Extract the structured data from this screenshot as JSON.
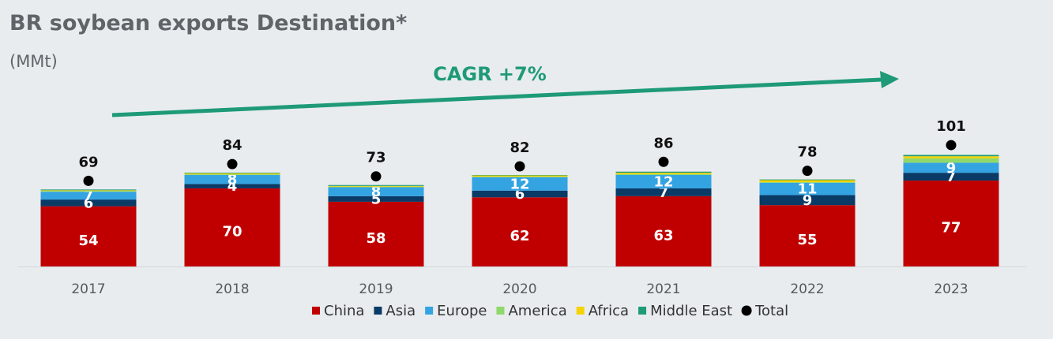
{
  "title": "BR soybean exports Destination*",
  "unit": "(MMt)",
  "annotation": {
    "text": "CAGR +7%",
    "color": "#1e9a78"
  },
  "chart_data": {
    "type": "bar",
    "stacked": true,
    "title": "BR soybean exports Destination*",
    "ylabel": "(MMt)",
    "categories": [
      "2017",
      "2018",
      "2019",
      "2020",
      "2021",
      "2022",
      "2023"
    ],
    "ylim": [
      0,
      101
    ],
    "grid": false,
    "legend_position": "bottom",
    "series": [
      {
        "name": "China",
        "color": "#c00000",
        "values": [
          54,
          70,
          58,
          62,
          63,
          55,
          77
        ],
        "labels": [
          "54",
          "70",
          "58",
          "62",
          "63",
          "55",
          "77"
        ]
      },
      {
        "name": "Asia",
        "color": "#0a3a66",
        "values": [
          6,
          4,
          5,
          6,
          7,
          9,
          7
        ],
        "labels": [
          "6",
          "4",
          "5",
          "6",
          "7",
          "9",
          "7"
        ]
      },
      {
        "name": "Europe",
        "color": "#34a3e2",
        "values": [
          7,
          8,
          8,
          12,
          12,
          11,
          9
        ],
        "labels": [
          "7",
          "8",
          "8",
          "12",
          "12",
          "11",
          "9"
        ]
      },
      {
        "name": "America",
        "color": "#8fd86a",
        "values": [
          0.7,
          0.6,
          0.6,
          0.6,
          0.8,
          0.6,
          4
        ],
        "labels": [
          "",
          "",
          "",
          "",
          "",
          "",
          ""
        ]
      },
      {
        "name": "Africa",
        "color": "#f5d300",
        "values": [
          0.6,
          0.8,
          0.6,
          1.0,
          1.2,
          1.8,
          1.8
        ],
        "labels": [
          "",
          "",
          "",
          "",
          "",
          "",
          ""
        ]
      },
      {
        "name": "Middle East",
        "color": "#1f9b79",
        "values": [
          0.7,
          0.6,
          0.8,
          0.4,
          1.0,
          0.6,
          1.2
        ],
        "labels": [
          "",
          "",
          "",
          "",
          "",
          "",
          ""
        ]
      }
    ],
    "totals": {
      "name": "Total",
      "color": "#000000",
      "values": [
        69,
        84,
        73,
        82,
        86,
        78,
        101
      ],
      "labels": [
        "69",
        "84",
        "73",
        "82",
        "86",
        "78",
        "101"
      ]
    }
  }
}
